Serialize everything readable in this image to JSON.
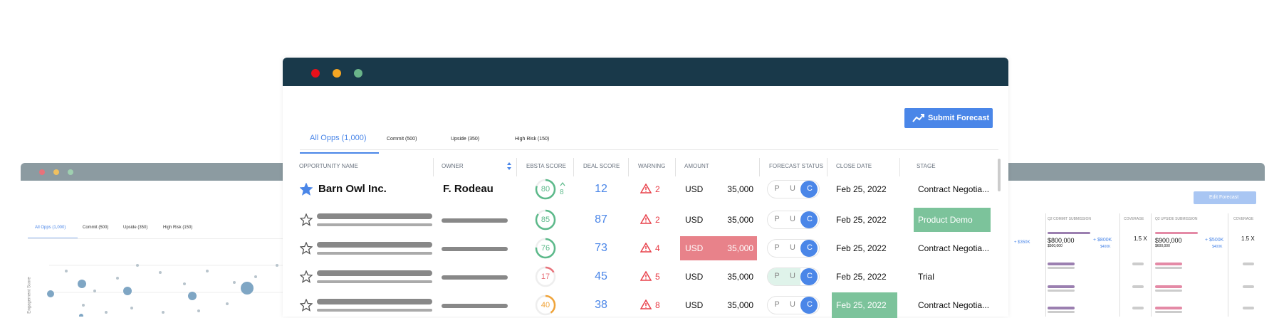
{
  "main": {
    "button": "Submit Forecast",
    "tabs": [
      "All Opps (1,000)",
      "Commit (500)",
      "Upside (350)",
      "High Risk (150)"
    ],
    "columns": [
      "OPPORTUNITY NAME",
      "OWNER",
      "EBSTA SCORE",
      "DEAL SCORE",
      "WARNING",
      "AMOUNT",
      "FORECAST STATUS",
      "CLOSE DATE",
      "STAGE"
    ],
    "rows": [
      {
        "name": "Barn Owl Inc.",
        "owner": "F. Rodeau",
        "ebsta": "80",
        "ebsta_delta": "8",
        "ebsta_color": "#5cb98a",
        "deal": "12",
        "warning": "2",
        "currency": "USD",
        "amount": "35,000",
        "status": [
          "P",
          "U",
          "C"
        ],
        "close": "Feb 25, 2022",
        "stage": "Contract Negotia..."
      },
      {
        "ebsta": "85",
        "ebsta_color": "#5cb98a",
        "deal": "87",
        "warning": "2",
        "currency": "USD",
        "amount": "35,000",
        "status": [
          "P",
          "U",
          "C"
        ],
        "close": "Feb 25, 2022",
        "stage": "Product Demo"
      },
      {
        "ebsta": "76",
        "ebsta_color": "#5cb98a",
        "deal": "73",
        "warning": "4",
        "currency": "USD",
        "amount": "35,000",
        "status": [
          "P",
          "U",
          "C"
        ],
        "close": "Feb 25, 2022",
        "stage": "Contract Negotia..."
      },
      {
        "ebsta": "17",
        "ebsta_color": "#e8727a",
        "deal": "45",
        "warning": "5",
        "currency": "USD",
        "amount": "35,000",
        "status": [
          "P",
          "U",
          "C"
        ],
        "close": "Feb 25, 2022",
        "stage": "Trial"
      },
      {
        "ebsta": "40",
        "ebsta_color": "#f0a43a",
        "deal": "38",
        "warning": "8",
        "currency": "USD",
        "amount": "35,000",
        "status": [
          "P",
          "U",
          "C"
        ],
        "close": "Feb 25, 2022",
        "stage": "Contract Negotia..."
      }
    ]
  },
  "left_panel": {
    "tabs": [
      "All Opps (1,000)",
      "Commit (500)",
      "Upside (350)",
      "High Risk (150)"
    ],
    "y_label": "Engagement Score"
  },
  "right_panel": {
    "button": "Edit Forecast",
    "columns": [
      "Q2 COMMIT SUBMISSION",
      "COVERAGE",
      "Q2 UPSIDE SUBMISSION",
      "COVERAGE"
    ],
    "texts": [
      "+ $350K",
      "$800,000",
      "$500,000",
      "+ $800K",
      "$400K",
      "1.5 X",
      "$900,000",
      "$600,000",
      "+ $500K",
      "$400K",
      "1.5 X"
    ]
  }
}
